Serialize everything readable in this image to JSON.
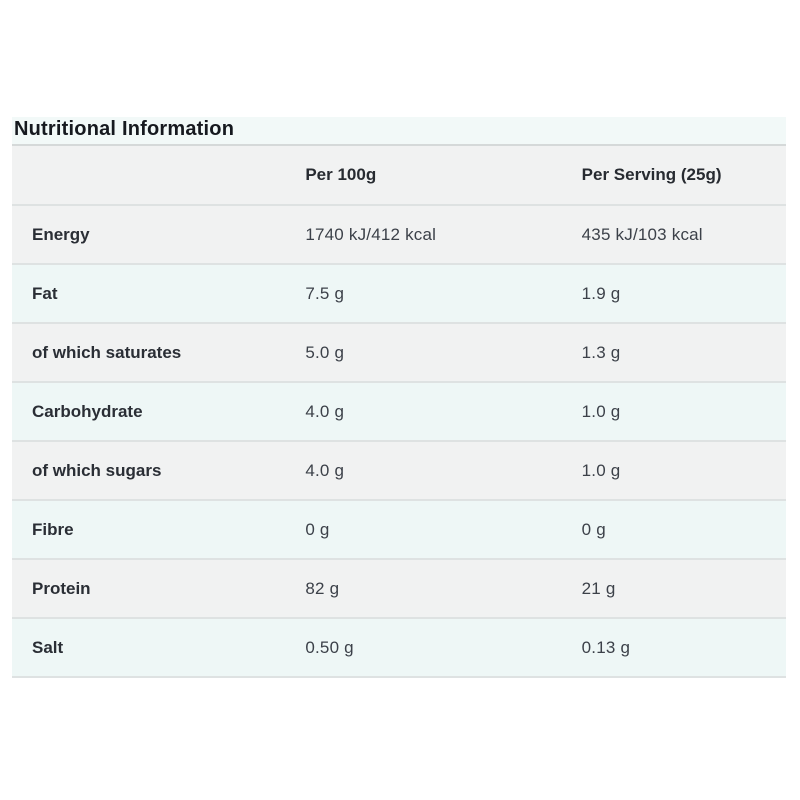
{
  "title": "Nutritional Information",
  "table": {
    "columns": [
      "",
      "Per 100g",
      "Per Serving (25g)"
    ],
    "rows": [
      {
        "label": "Energy",
        "per100g": "1740 kJ/412 kcal",
        "perServing": "435 kJ/103 kcal",
        "variant": "gray"
      },
      {
        "label": "Fat",
        "per100g": "7.5 g",
        "perServing": "1.9 g",
        "variant": "teal"
      },
      {
        "label": "of which saturates",
        "per100g": "5.0 g",
        "perServing": "1.3 g",
        "variant": "gray"
      },
      {
        "label": "Carbohydrate",
        "per100g": "4.0 g",
        "perServing": "1.0 g",
        "variant": "teal"
      },
      {
        "label": "of which sugars",
        "per100g": "4.0 g",
        "perServing": "1.0 g",
        "variant": "gray"
      },
      {
        "label": "Fibre",
        "per100g": "0 g",
        "perServing": "0 g",
        "variant": "teal"
      },
      {
        "label": "Protein",
        "per100g": "82 g",
        "perServing": "21 g",
        "variant": "gray"
      },
      {
        "label": "Salt",
        "per100g": "0.50 g",
        "perServing": "0.13 g",
        "variant": "teal"
      }
    ]
  },
  "colors": {
    "row_gray": "#f1f2f2",
    "row_teal": "#eef7f6",
    "title_strip": "#f2f9f8",
    "divider": "#dee2e2",
    "title_text": "#16191f",
    "label_text": "#2a2e35",
    "value_text": "#3c4149",
    "page_background": "#ffffff"
  }
}
